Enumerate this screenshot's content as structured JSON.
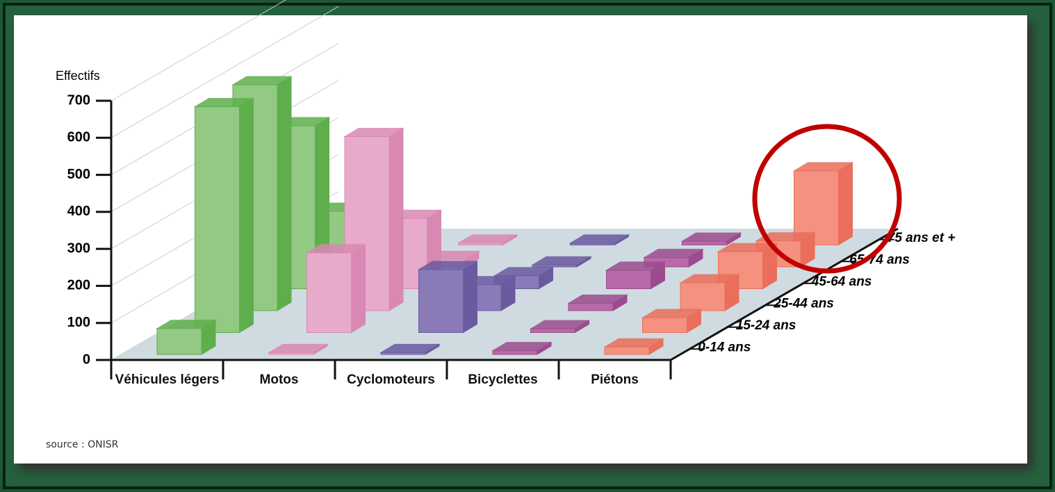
{
  "chart_data": {
    "type": "bar3d",
    "y_label": "Effectifs",
    "source": "source : ONISR",
    "categories": [
      "Véhicules légers",
      "Motos",
      "Cyclomoteurs",
      "Bicyclettes",
      "Piétons"
    ],
    "colors": [
      "#92c983",
      "#e8aacb",
      "#8a7bb8",
      "#b968aa",
      "#f4917f"
    ],
    "edge_colors": [
      "#5fae4c",
      "#d888b3",
      "#6b5aa0",
      "#9c4c8e",
      "#ea6e5b"
    ],
    "series": [
      {
        "name": "0-14 ans",
        "values": [
          70,
          5,
          5,
          10,
          20
        ]
      },
      {
        "name": "15-24 ans",
        "values": [
          610,
          215,
          170,
          10,
          40
        ]
      },
      {
        "name": "25-44 ans",
        "values": [
          610,
          470,
          70,
          20,
          75
        ]
      },
      {
        "name": "45-64 ans",
        "values": [
          440,
          190,
          35,
          50,
          100
        ]
      },
      {
        "name": "65-74 ans",
        "values": [
          150,
          20,
          5,
          25,
          70
        ]
      },
      {
        "name": "75 ans et +",
        "values": [
          50,
          5,
          5,
          10,
          200
        ]
      }
    ],
    "ylim": [
      0,
      700
    ],
    "yticks": [
      0,
      100,
      200,
      300,
      400,
      500,
      600,
      700
    ],
    "grid": true
  }
}
